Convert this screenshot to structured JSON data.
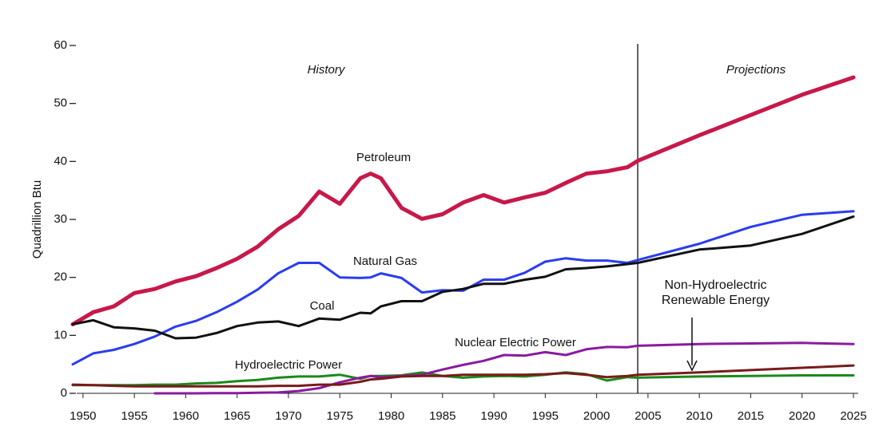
{
  "chart_data": {
    "type": "line",
    "y_label": "Quadrillion Btu",
    "annotations": [
      "History",
      "Projections"
    ],
    "projection_start": 2004,
    "xlim": [
      1949,
      2025
    ],
    "ylim": [
      0,
      60
    ],
    "xticks": [
      1950,
      1955,
      1960,
      1965,
      1970,
      1975,
      1980,
      1985,
      1990,
      1995,
      2000,
      2005,
      2010,
      2015,
      2020,
      2025
    ],
    "yticks": [
      0,
      10,
      20,
      30,
      40,
      50,
      60
    ],
    "x": [
      1949,
      1951,
      1953,
      1955,
      1957,
      1959,
      1961,
      1963,
      1965,
      1967,
      1969,
      1971,
      1973,
      1975,
      1977,
      1978,
      1979,
      1981,
      1983,
      1985,
      1987,
      1989,
      1991,
      1993,
      1995,
      1997,
      1999,
      2001,
      2003,
      2004,
      2010,
      2015,
      2020,
      2025
    ],
    "series": [
      {
        "name": "Petroleum",
        "color": "#c8184a",
        "width": 5,
        "values": [
          11.9,
          14.0,
          15.0,
          17.3,
          18.0,
          19.3,
          20.2,
          21.6,
          23.2,
          25.3,
          28.3,
          30.6,
          34.8,
          32.7,
          37.1,
          37.9,
          37.1,
          32.0,
          30.1,
          30.9,
          32.9,
          34.2,
          32.9,
          33.8,
          34.6,
          36.3,
          37.9,
          38.3,
          39.0,
          40.1,
          44.5,
          48.0,
          51.5,
          54.5
        ]
      },
      {
        "name": "Natural Gas",
        "color": "#2a3cf0",
        "width": 3,
        "values": [
          5.0,
          6.9,
          7.5,
          8.5,
          9.8,
          11.5,
          12.5,
          14.0,
          15.8,
          17.9,
          20.7,
          22.5,
          22.5,
          20.0,
          19.9,
          20.0,
          20.7,
          19.9,
          17.4,
          17.8,
          17.7,
          19.6,
          19.6,
          20.8,
          22.7,
          23.3,
          22.9,
          22.9,
          22.5,
          23.0,
          25.8,
          28.7,
          30.8,
          31.4
        ]
      },
      {
        "name": "Coal",
        "color": "#111111",
        "width": 3,
        "values": [
          11.9,
          12.6,
          11.4,
          11.2,
          10.8,
          9.5,
          9.6,
          10.4,
          11.6,
          12.2,
          12.4,
          11.6,
          12.9,
          12.7,
          13.9,
          13.8,
          15.0,
          15.9,
          15.9,
          17.5,
          18.0,
          18.9,
          18.9,
          19.6,
          20.1,
          21.4,
          21.6,
          21.9,
          22.3,
          22.5,
          24.8,
          25.5,
          27.5,
          30.5
        ]
      },
      {
        "name": "Hydroelectric Power",
        "color": "#1a8a1a",
        "width": 3,
        "values": [
          1.4,
          1.4,
          1.4,
          1.4,
          1.5,
          1.5,
          1.7,
          1.8,
          2.1,
          2.3,
          2.7,
          2.9,
          2.9,
          3.2,
          2.5,
          3.0,
          3.0,
          3.1,
          3.6,
          3.0,
          2.7,
          2.9,
          3.0,
          2.9,
          3.2,
          3.6,
          3.3,
          2.2,
          2.8,
          2.7,
          2.9,
          3.0,
          3.1,
          3.1
        ]
      },
      {
        "name": "Nuclear Electric Power",
        "color": "#8a1aa0",
        "width": 3,
        "values": [
          null,
          null,
          null,
          null,
          0.0,
          0.0,
          0.0,
          0.04,
          0.04,
          0.09,
          0.15,
          0.4,
          0.9,
          1.9,
          2.7,
          3.0,
          2.8,
          3.0,
          3.2,
          4.1,
          4.9,
          5.6,
          6.6,
          6.5,
          7.1,
          6.6,
          7.6,
          8.0,
          7.96,
          8.2,
          8.5,
          8.6,
          8.7,
          8.5
        ]
      },
      {
        "name": "Non-Hydroelectric Renewable Energy",
        "color": "#7a1a1a",
        "width": 3,
        "values": [
          1.5,
          1.4,
          1.3,
          1.2,
          1.2,
          1.2,
          1.2,
          1.2,
          1.2,
          1.2,
          1.3,
          1.3,
          1.5,
          1.5,
          2.0,
          2.4,
          2.5,
          2.9,
          3.0,
          3.0,
          3.2,
          3.2,
          3.2,
          3.2,
          3.3,
          3.5,
          3.2,
          2.8,
          3.0,
          3.2,
          3.6,
          4.0,
          4.4,
          4.8
        ]
      }
    ]
  }
}
